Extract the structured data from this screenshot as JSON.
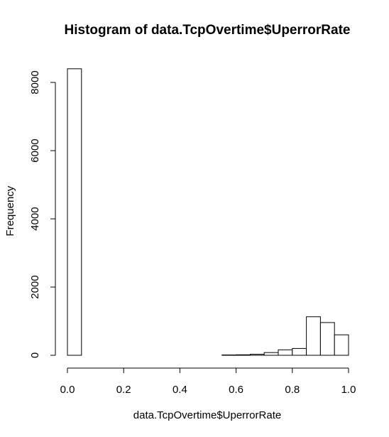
{
  "chart_data": {
    "type": "bar",
    "title": "Histogram of data.TcpOvertime$UperrorRate",
    "xlabel": "data.TcpOvertime$UperrorRate",
    "ylabel": "Frequency",
    "xlim": [
      0,
      1
    ],
    "ylim": [
      0,
      8400
    ],
    "grid": false,
    "bin_width": 0.05,
    "bins": [
      {
        "x0": 0.0,
        "x1": 0.05,
        "count": 8400
      },
      {
        "x0": 0.05,
        "x1": 0.1,
        "count": 0
      },
      {
        "x0": 0.1,
        "x1": 0.15,
        "count": 0
      },
      {
        "x0": 0.15,
        "x1": 0.2,
        "count": 0
      },
      {
        "x0": 0.2,
        "x1": 0.25,
        "count": 0
      },
      {
        "x0": 0.25,
        "x1": 0.3,
        "count": 0
      },
      {
        "x0": 0.3,
        "x1": 0.35,
        "count": 0
      },
      {
        "x0": 0.35,
        "x1": 0.4,
        "count": 0
      },
      {
        "x0": 0.4,
        "x1": 0.45,
        "count": 0
      },
      {
        "x0": 0.45,
        "x1": 0.5,
        "count": 0
      },
      {
        "x0": 0.5,
        "x1": 0.55,
        "count": 0
      },
      {
        "x0": 0.55,
        "x1": 0.6,
        "count": 10
      },
      {
        "x0": 0.6,
        "x1": 0.65,
        "count": 15
      },
      {
        "x0": 0.65,
        "x1": 0.7,
        "count": 30
      },
      {
        "x0": 0.7,
        "x1": 0.75,
        "count": 80
      },
      {
        "x0": 0.75,
        "x1": 0.8,
        "count": 160
      },
      {
        "x0": 0.8,
        "x1": 0.85,
        "count": 200
      },
      {
        "x0": 0.85,
        "x1": 0.9,
        "count": 1130
      },
      {
        "x0": 0.9,
        "x1": 0.95,
        "count": 960
      },
      {
        "x0": 0.95,
        "x1": 1.0,
        "count": 600
      }
    ],
    "x_ticks": [
      {
        "value": 0.0,
        "label": "0.0"
      },
      {
        "value": 0.2,
        "label": "0.2"
      },
      {
        "value": 0.4,
        "label": "0.4"
      },
      {
        "value": 0.6,
        "label": "0.6"
      },
      {
        "value": 0.8,
        "label": "0.8"
      },
      {
        "value": 1.0,
        "label": "1.0"
      }
    ],
    "y_ticks": [
      {
        "value": 0,
        "label": "0"
      },
      {
        "value": 2000,
        "label": "2000"
      },
      {
        "value": 4000,
        "label": "4000"
      },
      {
        "value": 6000,
        "label": "6000"
      },
      {
        "value": 8000,
        "label": "8000"
      }
    ]
  }
}
